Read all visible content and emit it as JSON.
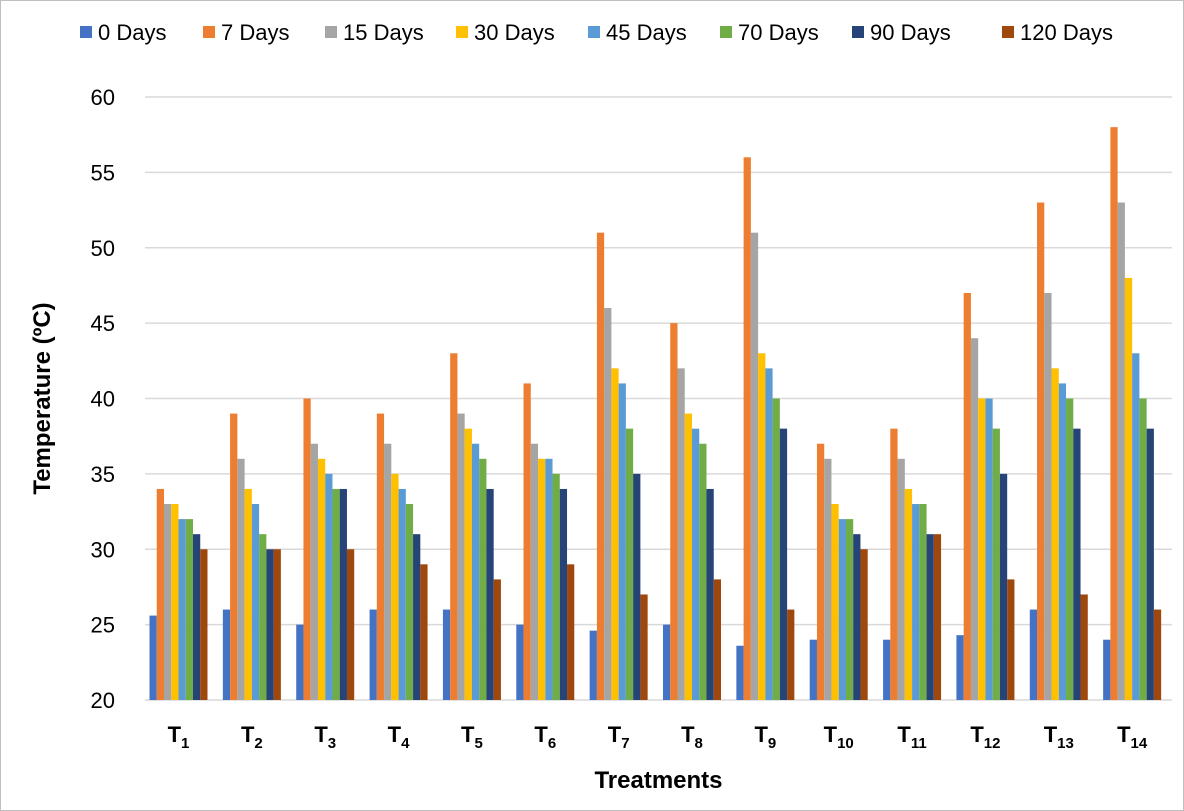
{
  "chart_data": {
    "type": "bar",
    "title": "",
    "xlabel": "Treatments",
    "ylabel": "Temperature (ºC)",
    "ylim": [
      20,
      60
    ],
    "ytick_step": 5,
    "grid": true,
    "legend_position": "top",
    "categories": [
      {
        "base": "T",
        "sub": "1"
      },
      {
        "base": "T",
        "sub": "2"
      },
      {
        "base": "T",
        "sub": "3"
      },
      {
        "base": "T",
        "sub": "4"
      },
      {
        "base": "T",
        "sub": "5"
      },
      {
        "base": "T",
        "sub": "6"
      },
      {
        "base": "T",
        "sub": "7"
      },
      {
        "base": "T",
        "sub": "8"
      },
      {
        "base": "T",
        "sub": "9"
      },
      {
        "base": "T",
        "sub": "10"
      },
      {
        "base": "T",
        "sub": "11"
      },
      {
        "base": "T",
        "sub": "12"
      },
      {
        "base": "T",
        "sub": "13"
      },
      {
        "base": "T",
        "sub": "14"
      }
    ],
    "series": [
      {
        "name": "0 Days",
        "color": "#4472c4",
        "values": [
          25.6,
          26,
          25,
          26,
          26,
          25,
          24.6,
          25,
          23.6,
          24,
          24,
          24.3,
          26,
          24
        ]
      },
      {
        "name": "7 Days",
        "color": "#ed7d31",
        "values": [
          34,
          39,
          40,
          39,
          43,
          41,
          51,
          45,
          56,
          37,
          38,
          47,
          53,
          58
        ]
      },
      {
        "name": "15 Days",
        "color": "#a5a5a5",
        "values": [
          33,
          36,
          37,
          37,
          39,
          37,
          46,
          42,
          51,
          36,
          36,
          44,
          47,
          53
        ]
      },
      {
        "name": "30 Days",
        "color": "#ffc000",
        "values": [
          33,
          34,
          36,
          35,
          38,
          36,
          42,
          39,
          43,
          33,
          34,
          40,
          42,
          48
        ]
      },
      {
        "name": "45 Days",
        "color": "#5b9bd5",
        "values": [
          32,
          33,
          35,
          34,
          37,
          36,
          41,
          38,
          42,
          32,
          33,
          40,
          41,
          43
        ]
      },
      {
        "name": "70 Days",
        "color": "#70ad47",
        "values": [
          32,
          31,
          34,
          33,
          36,
          35,
          38,
          37,
          40,
          32,
          33,
          38,
          40,
          40
        ]
      },
      {
        "name": "90 Days",
        "color": "#264478",
        "values": [
          31,
          30,
          34,
          31,
          34,
          34,
          35,
          34,
          38,
          31,
          31,
          35,
          38,
          38
        ]
      },
      {
        "name": "120 Days",
        "color": "#9e480e",
        "values": [
          30,
          30,
          30,
          29,
          28,
          29,
          27,
          28,
          26,
          30,
          31,
          28,
          27,
          26
        ]
      }
    ]
  }
}
